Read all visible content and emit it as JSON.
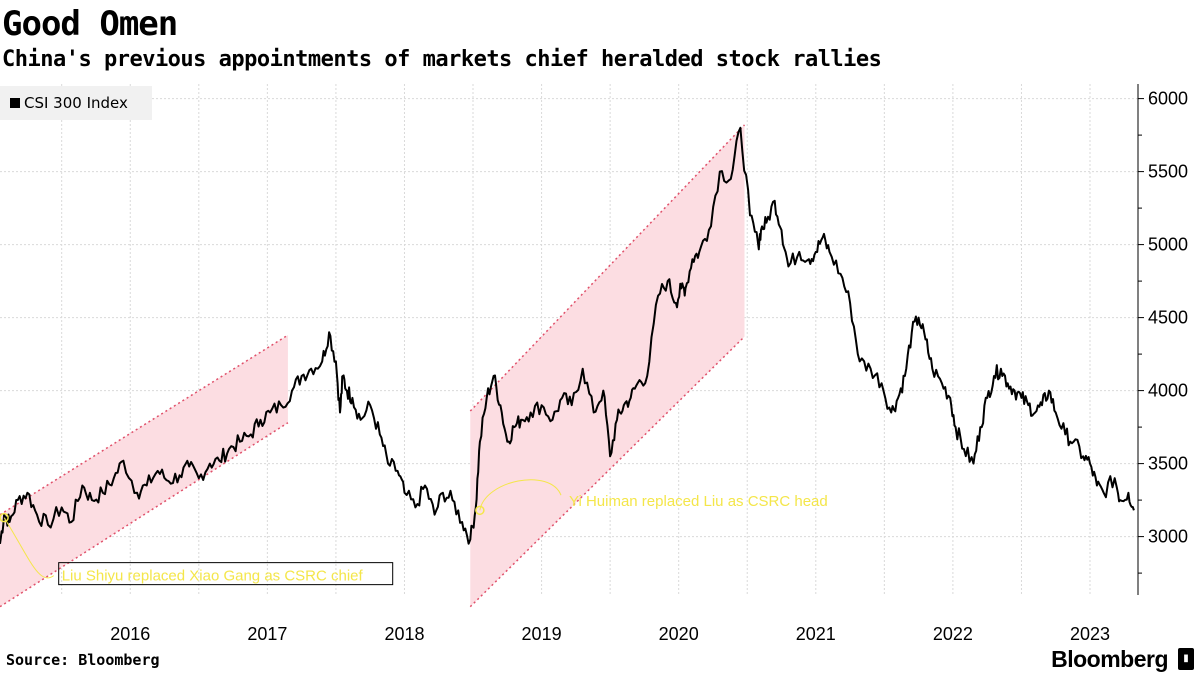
{
  "title": "Good Omen",
  "subtitle": "China's previous appointments of markets chief heralded stock rallies",
  "legend": {
    "label": "CSI 300 Index",
    "color": "#000000"
  },
  "source": "Source: Bloomberg",
  "brand": "Bloomberg",
  "colors": {
    "line": "#000000",
    "band_fill": "#fcdde2",
    "band_edge": "#e0506a",
    "annotation": "#f4e64a",
    "grid": "#d9d9d9"
  },
  "chart_data": {
    "type": "line",
    "title": "Good Omen",
    "subtitle": "China's previous appointments of markets chief heralded stock rallies",
    "xlabel": "",
    "ylabel": "",
    "xlim": [
      2015.55,
      2023.85
    ],
    "ylim": [
      2600,
      6100
    ],
    "x_ticks": [
      2016,
      2017,
      2018,
      2019,
      2020,
      2021,
      2022,
      2023
    ],
    "y_ticks": [
      3000,
      3500,
      4000,
      4500,
      5000,
      5500,
      6000
    ],
    "y_axis_position": "right",
    "grid": "vertical dotted",
    "legend_position": "top-left",
    "series": [
      {
        "name": "CSI 300 Index",
        "x": [
          2015.55,
          2015.58,
          2015.62,
          2015.68,
          2015.75,
          2015.82,
          2015.9,
          2016.0,
          2016.07,
          2016.15,
          2016.22,
          2016.3,
          2016.38,
          2016.45,
          2016.55,
          2016.62,
          2016.7,
          2016.78,
          2016.86,
          2016.93,
          2017.0,
          2017.08,
          2017.15,
          2017.22,
          2017.3,
          2017.38,
          2017.45,
          2017.52,
          2017.6,
          2017.68,
          2017.75,
          2017.82,
          2017.9,
          2017.95,
          2018.0,
          2018.03,
          2018.05,
          2018.08,
          2018.12,
          2018.18,
          2018.25,
          2018.32,
          2018.38,
          2018.45,
          2018.5,
          2018.58,
          2018.65,
          2018.72,
          2018.78,
          2018.85,
          2018.92,
          2018.98,
          2019.02,
          2019.05,
          2019.1,
          2019.15,
          2019.2,
          2019.25,
          2019.3,
          2019.35,
          2019.42,
          2019.5,
          2019.58,
          2019.65,
          2019.72,
          2019.8,
          2019.88,
          2019.95,
          2020.0,
          2020.05,
          2020.1,
          2020.15,
          2020.2,
          2020.27,
          2020.35,
          2020.42,
          2020.48,
          2020.52,
          2020.55,
          2020.6,
          2020.65,
          2020.72,
          2020.8,
          2020.88,
          2020.95,
          2021.02,
          2021.08,
          2021.1,
          2021.14,
          2021.2,
          2021.25,
          2021.3,
          2021.38,
          2021.45,
          2021.5,
          2021.55,
          2021.6,
          2021.68,
          2021.75,
          2021.82,
          2021.9,
          2021.98,
          2022.05,
          2022.1,
          2022.15,
          2022.2,
          2022.25,
          2022.3,
          2022.35,
          2022.42,
          2022.48,
          2022.52,
          2022.58,
          2022.65,
          2022.7,
          2022.75,
          2022.8,
          2022.85,
          2022.9,
          2022.95,
          2023.0,
          2023.05,
          2023.1,
          2023.15,
          2023.2,
          2023.25,
          2023.32,
          2023.38,
          2023.45,
          2023.5,
          2023.55,
          2023.6,
          2023.68,
          2023.72,
          2023.78,
          2023.82
        ],
        "y": [
          2950,
          3150,
          3100,
          3250,
          3300,
          3150,
          3080,
          3200,
          3100,
          3350,
          3250,
          3300,
          3400,
          3520,
          3300,
          3350,
          3450,
          3380,
          3420,
          3480,
          3400,
          3500,
          3520,
          3600,
          3650,
          3700,
          3800,
          3850,
          3900,
          4000,
          4100,
          4150,
          4200,
          4400,
          4200,
          3850,
          4100,
          4000,
          3950,
          3800,
          3900,
          3700,
          3500,
          3450,
          3300,
          3200,
          3350,
          3150,
          3300,
          3250,
          3100,
          2980,
          3200,
          3650,
          3950,
          4100,
          3900,
          3650,
          3750,
          3800,
          3850,
          3900,
          3800,
          3950,
          3900,
          4150,
          3850,
          4000,
          3550,
          3800,
          3900,
          3950,
          4050,
          4100,
          4650,
          4750,
          4600,
          4700,
          4700,
          4900,
          4950,
          5100,
          5500,
          5450,
          5800,
          5200,
          5000,
          5100,
          5150,
          5300,
          5100,
          4850,
          4950,
          4900,
          4950,
          5050,
          4950,
          4800,
          4600,
          4200,
          4150,
          4050,
          3850,
          3950,
          4100,
          4400,
          4500,
          4350,
          4150,
          4050,
          3950,
          3750,
          3600,
          3500,
          3750,
          3950,
          4100,
          4150,
          4050,
          4000,
          3950,
          3900,
          3850,
          3900,
          4000,
          3850,
          3700,
          3650,
          3550,
          3500,
          3350,
          3300,
          3400,
          3250,
          3300,
          3180
        ]
      }
    ],
    "highlight_bands": [
      {
        "x": [
          2015.55,
          2017.65
        ],
        "upper": [
          3150,
          4380
        ],
        "lower": [
          2520,
          3780
        ]
      },
      {
        "x": [
          2018.98,
          2020.98
        ],
        "upper": [
          3860,
          5820
        ],
        "lower": [
          2520,
          4370
        ]
      }
    ],
    "annotations": [
      {
        "text": "Liu Shiyu replaced Xiao Gang as CSRC chief",
        "x": 2016.0,
        "y": 2760,
        "point": [
          2015.58,
          3130
        ]
      },
      {
        "text": "Yi Huiman replaced Liu as CSRC head",
        "x": 2019.7,
        "y": 3270,
        "point": [
          2019.05,
          3180
        ]
      }
    ]
  }
}
